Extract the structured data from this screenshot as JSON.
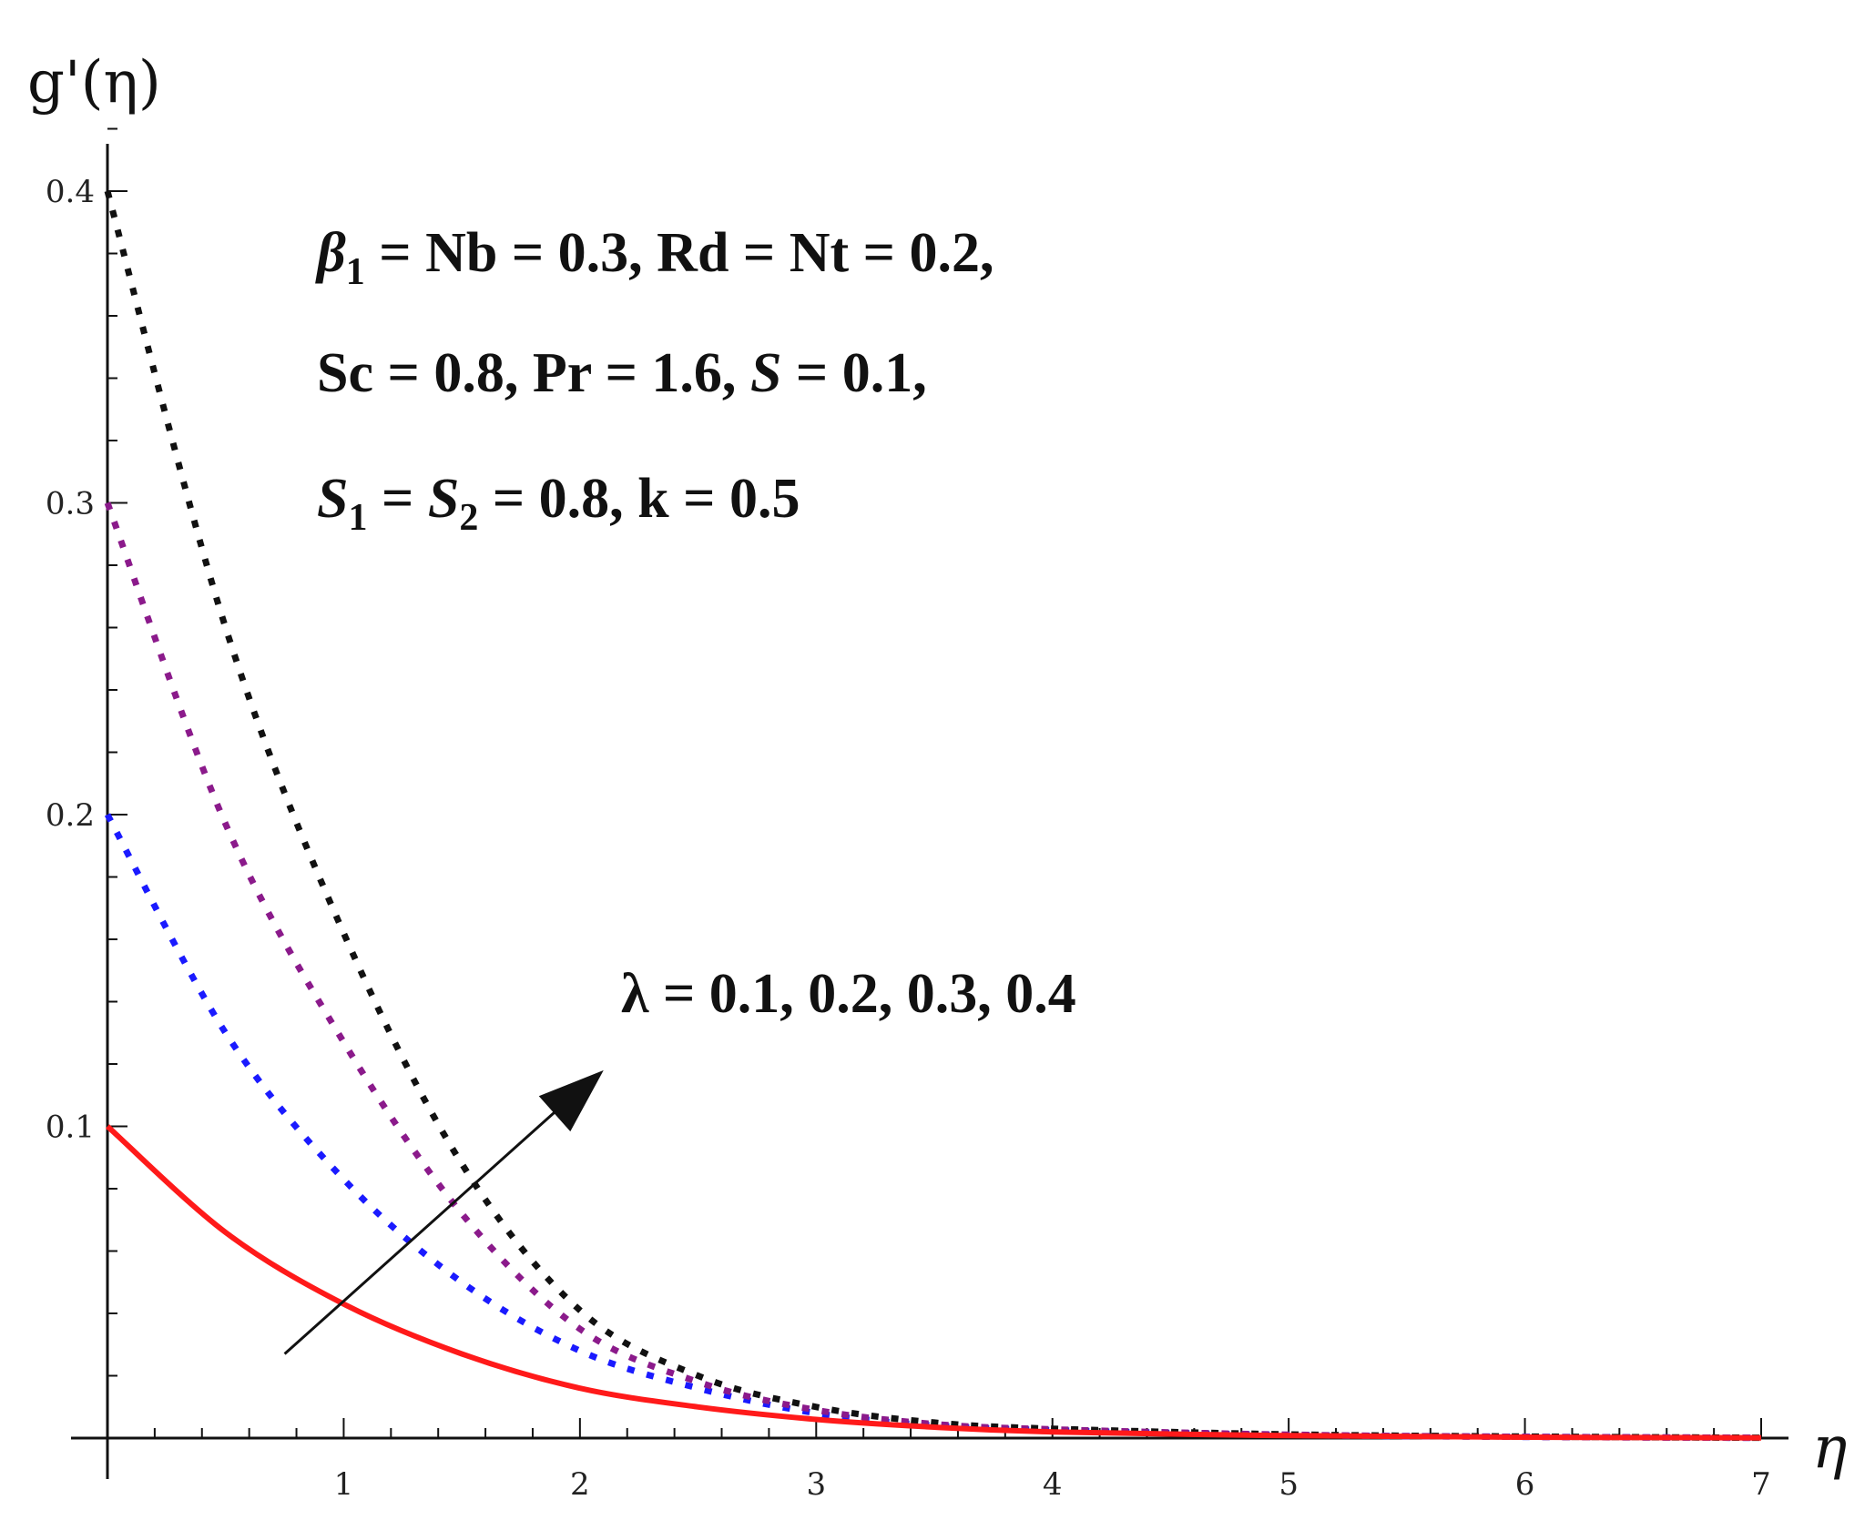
{
  "chart_data": {
    "type": "line",
    "title": "",
    "xlabel": "η",
    "ylabel": "g'(η)",
    "xlim": [
      0,
      7
    ],
    "ylim": [
      0,
      0.4
    ],
    "x_ticks": [
      1,
      2,
      3,
      4,
      5,
      6,
      7
    ],
    "y_ticks": [
      0.1,
      0.2,
      0.3,
      0.4
    ],
    "grid": false,
    "legend": "none",
    "annotations": [
      "β1 = Nb = 0.3, Rd = Nt = 0.2,",
      "Sc = 0.8, Pr = 1.6, S = 0.1,",
      "S1 = S2 = 0.8, k = 0.5",
      "λ = 0.1, 0.2, 0.3, 0.4"
    ],
    "arrow": {
      "from": [
        0.75,
        0.027
      ],
      "to": [
        2.1,
        0.118
      ]
    },
    "series": [
      {
        "lambda": 0.1,
        "color": "#ff1a1a",
        "style": "solid",
        "x": [
          0,
          0.5,
          1,
          1.5,
          2,
          2.5,
          3,
          3.5,
          4,
          5,
          6,
          7
        ],
        "y": [
          0.1,
          0.066,
          0.043,
          0.027,
          0.016,
          0.01,
          0.006,
          0.0035,
          0.002,
          0.0008,
          0.0003,
          0.0001
        ]
      },
      {
        "lambda": 0.2,
        "color": "#1a1aff",
        "style": "dotted",
        "x": [
          0,
          0.5,
          1,
          1.5,
          2,
          2.5,
          3,
          3.5,
          4,
          5,
          6,
          7
        ],
        "y": [
          0.2,
          0.13,
          0.083,
          0.05,
          0.028,
          0.016,
          0.008,
          0.004,
          0.0025,
          0.001,
          0.0004,
          0.0001
        ]
      },
      {
        "lambda": 0.3,
        "color": "#8b1a8b",
        "style": "dotted",
        "x": [
          0,
          0.5,
          1,
          1.5,
          2,
          2.5,
          3,
          3.5,
          4,
          5,
          6,
          7
        ],
        "y": [
          0.3,
          0.197,
          0.127,
          0.072,
          0.035,
          0.018,
          0.009,
          0.0045,
          0.0028,
          0.0011,
          0.0004,
          0.0001
        ]
      },
      {
        "lambda": 0.4,
        "color": "#111111",
        "style": "dotted",
        "x": [
          0,
          0.5,
          1,
          1.5,
          2,
          2.5,
          3,
          3.5,
          4,
          5,
          6,
          7
        ],
        "y": [
          0.4,
          0.26,
          0.162,
          0.088,
          0.041,
          0.02,
          0.01,
          0.005,
          0.003,
          0.0012,
          0.0005,
          0.0001
        ]
      }
    ]
  }
}
